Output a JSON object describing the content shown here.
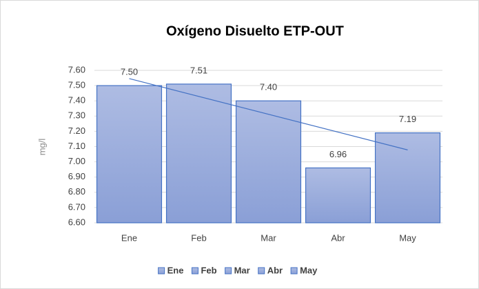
{
  "chart_data": {
    "type": "bar",
    "title": "Oxígeno Disuelto ETP-OUT",
    "y_label": "mg/l",
    "categories": [
      "Ene",
      "Feb",
      "Mar",
      "Abr",
      "May"
    ],
    "values": [
      7.5,
      7.51,
      7.4,
      6.96,
      7.19
    ],
    "value_labels": [
      "7.50",
      "7.51",
      "7.40",
      "6.96",
      "7.19"
    ],
    "color": "#9aaede",
    "edge_color": "#4472c4",
    "ylim": [
      6.6,
      7.6
    ],
    "yticks": [
      {
        "value": 6.6,
        "label": "6.60"
      },
      {
        "value": 6.7,
        "label": "6.70"
      },
      {
        "value": 6.8,
        "label": "6.80"
      },
      {
        "value": 6.9,
        "label": "6.90"
      },
      {
        "value": 7.0,
        "label": "7.00"
      },
      {
        "value": 7.1,
        "label": "7.10"
      },
      {
        "value": 7.2,
        "label": "7.20"
      },
      {
        "value": 7.3,
        "label": "7.30"
      },
      {
        "value": 7.4,
        "label": "7.40"
      },
      {
        "value": 7.5,
        "label": "7.50"
      },
      {
        "value": 7.6,
        "label": "7.60"
      }
    ],
    "grid": true,
    "trendline": "linear",
    "trend_color": "#4472c4",
    "legend": "bottom"
  }
}
